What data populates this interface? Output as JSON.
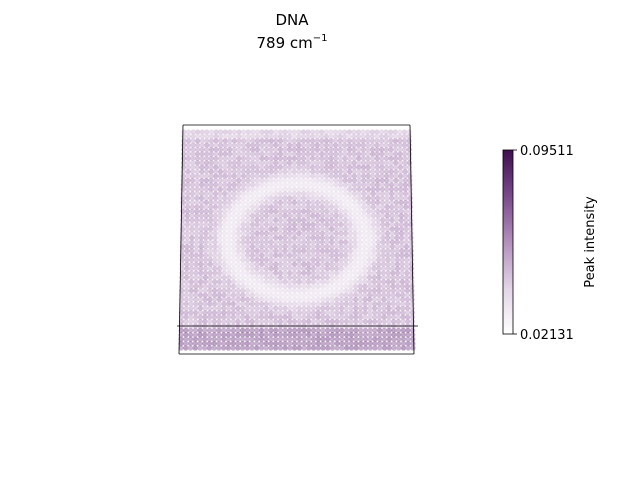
{
  "chart_data": {
    "type": "scatter",
    "title": "DNA",
    "subtitle_prefix": "789 cm",
    "subtitle_superscript": "−1",
    "colorbar": {
      "label": "Peak intensity",
      "min": 0.02131,
      "max": 0.09511,
      "min_label": "0.02131",
      "max_label": "0.09511",
      "colormap": [
        "#ffffff",
        "#e2d4e6",
        "#b38fbd",
        "#7a4a8c",
        "#3f0f4f"
      ]
    },
    "grid_size": [
      50,
      50
    ],
    "pattern": {
      "base_value": 0.055,
      "ring_center": [
        0.5,
        0.5
      ],
      "ring_radius": 0.3,
      "ring_width": 0.06,
      "ring_value": 0.035,
      "front_band_value": 0.07
    },
    "axes_visible": false
  }
}
